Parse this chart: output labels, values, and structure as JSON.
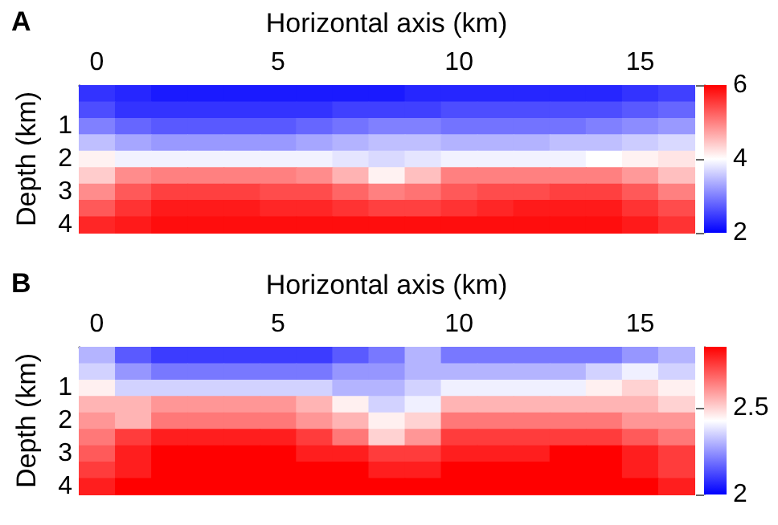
{
  "chart_data": [
    {
      "type": "heatmap",
      "title": "A",
      "xlabel": "Horizontal axis (km)",
      "ylabel": "Depth (km)",
      "categories": [
        "0",
        null,
        null,
        null,
        null,
        "5",
        null,
        null,
        null,
        null,
        "10",
        null,
        null,
        null,
        null,
        "15",
        null
      ],
      "y_categories": [
        null,
        null,
        "1",
        null,
        "2",
        null,
        "3",
        null,
        "4"
      ],
      "clim": [
        2,
        6
      ],
      "cticks": [
        2,
        4,
        6
      ],
      "cells": [
        [
          2.4,
          2.3,
          2.2,
          2.2,
          2.2,
          2.2,
          2.2,
          2.2,
          2.2,
          2.3,
          2.3,
          2.3,
          2.3,
          2.3,
          2.3,
          2.4,
          2.5
        ],
        [
          2.6,
          2.4,
          2.4,
          2.4,
          2.4,
          2.4,
          2.4,
          2.5,
          2.5,
          2.5,
          2.6,
          2.6,
          2.6,
          2.6,
          2.6,
          2.7,
          2.8
        ],
        [
          3.0,
          2.8,
          2.7,
          2.7,
          2.7,
          2.7,
          2.8,
          2.9,
          3.0,
          3.0,
          2.9,
          2.9,
          2.9,
          2.9,
          3.0,
          3.1,
          3.2
        ],
        [
          3.5,
          3.3,
          3.2,
          3.2,
          3.2,
          3.2,
          3.3,
          3.4,
          3.5,
          3.5,
          3.4,
          3.4,
          3.4,
          3.5,
          3.5,
          3.6,
          3.7
        ],
        [
          4.1,
          3.9,
          3.9,
          3.9,
          3.9,
          3.9,
          3.9,
          3.8,
          3.7,
          3.8,
          3.9,
          3.9,
          3.9,
          3.9,
          4.0,
          4.1,
          4.2
        ],
        [
          4.4,
          4.9,
          5.0,
          5.0,
          5.0,
          5.0,
          4.9,
          4.6,
          4.1,
          4.5,
          5.0,
          5.0,
          5.0,
          5.0,
          5.0,
          4.8,
          4.5
        ],
        [
          4.9,
          5.3,
          5.5,
          5.5,
          5.5,
          5.4,
          5.4,
          5.2,
          5.0,
          5.1,
          5.3,
          5.4,
          5.4,
          5.5,
          5.5,
          5.3,
          5.0
        ],
        [
          5.3,
          5.6,
          5.8,
          5.8,
          5.8,
          5.7,
          5.7,
          5.6,
          5.5,
          5.5,
          5.6,
          5.7,
          5.8,
          5.8,
          5.8,
          5.6,
          5.4
        ],
        [
          5.7,
          5.8,
          5.9,
          5.9,
          5.9,
          5.9,
          5.9,
          5.9,
          5.9,
          5.9,
          5.9,
          5.9,
          5.9,
          5.9,
          5.9,
          5.8,
          5.6
        ]
      ]
    },
    {
      "type": "heatmap",
      "title": "B",
      "xlabel": "Horizontal axis (km)",
      "ylabel": "Depth (km)",
      "categories": [
        "0",
        null,
        null,
        null,
        null,
        "5",
        null,
        null,
        null,
        null,
        "10",
        null,
        null,
        null,
        null,
        "15",
        null
      ],
      "y_categories": [
        null,
        null,
        "1",
        null,
        "2",
        null,
        "3",
        null,
        "4"
      ],
      "clim": [
        2,
        2.85
      ],
      "cticks": [
        2,
        2.5
      ],
      "cells": [
        [
          2.3,
          2.15,
          2.1,
          2.1,
          2.1,
          2.1,
          2.1,
          2.15,
          2.2,
          2.3,
          2.2,
          2.2,
          2.2,
          2.2,
          2.2,
          2.25,
          2.3
        ],
        [
          2.35,
          2.25,
          2.2,
          2.2,
          2.2,
          2.2,
          2.2,
          2.25,
          2.25,
          2.3,
          2.3,
          2.3,
          2.3,
          2.3,
          2.35,
          2.4,
          2.35
        ],
        [
          2.45,
          2.35,
          2.35,
          2.35,
          2.35,
          2.35,
          2.35,
          2.3,
          2.3,
          2.35,
          2.4,
          2.4,
          2.4,
          2.4,
          2.45,
          2.5,
          2.45
        ],
        [
          2.55,
          2.55,
          2.6,
          2.6,
          2.6,
          2.6,
          2.55,
          2.45,
          2.35,
          2.4,
          2.55,
          2.55,
          2.55,
          2.55,
          2.55,
          2.55,
          2.5
        ],
        [
          2.6,
          2.55,
          2.65,
          2.65,
          2.65,
          2.65,
          2.6,
          2.55,
          2.45,
          2.5,
          2.65,
          2.65,
          2.65,
          2.65,
          2.65,
          2.6,
          2.6
        ],
        [
          2.65,
          2.75,
          2.8,
          2.8,
          2.8,
          2.8,
          2.75,
          2.65,
          2.5,
          2.6,
          2.75,
          2.75,
          2.75,
          2.75,
          2.75,
          2.7,
          2.65
        ],
        [
          2.7,
          2.8,
          2.85,
          2.85,
          2.85,
          2.85,
          2.8,
          2.8,
          2.75,
          2.75,
          2.8,
          2.8,
          2.8,
          2.85,
          2.85,
          2.8,
          2.75
        ],
        [
          2.75,
          2.8,
          2.85,
          2.85,
          2.85,
          2.85,
          2.85,
          2.85,
          2.8,
          2.8,
          2.85,
          2.85,
          2.85,
          2.85,
          2.85,
          2.8,
          2.75
        ],
        [
          2.8,
          2.85,
          2.85,
          2.85,
          2.85,
          2.85,
          2.85,
          2.85,
          2.85,
          2.85,
          2.85,
          2.85,
          2.85,
          2.85,
          2.85,
          2.85,
          2.8
        ]
      ]
    }
  ]
}
